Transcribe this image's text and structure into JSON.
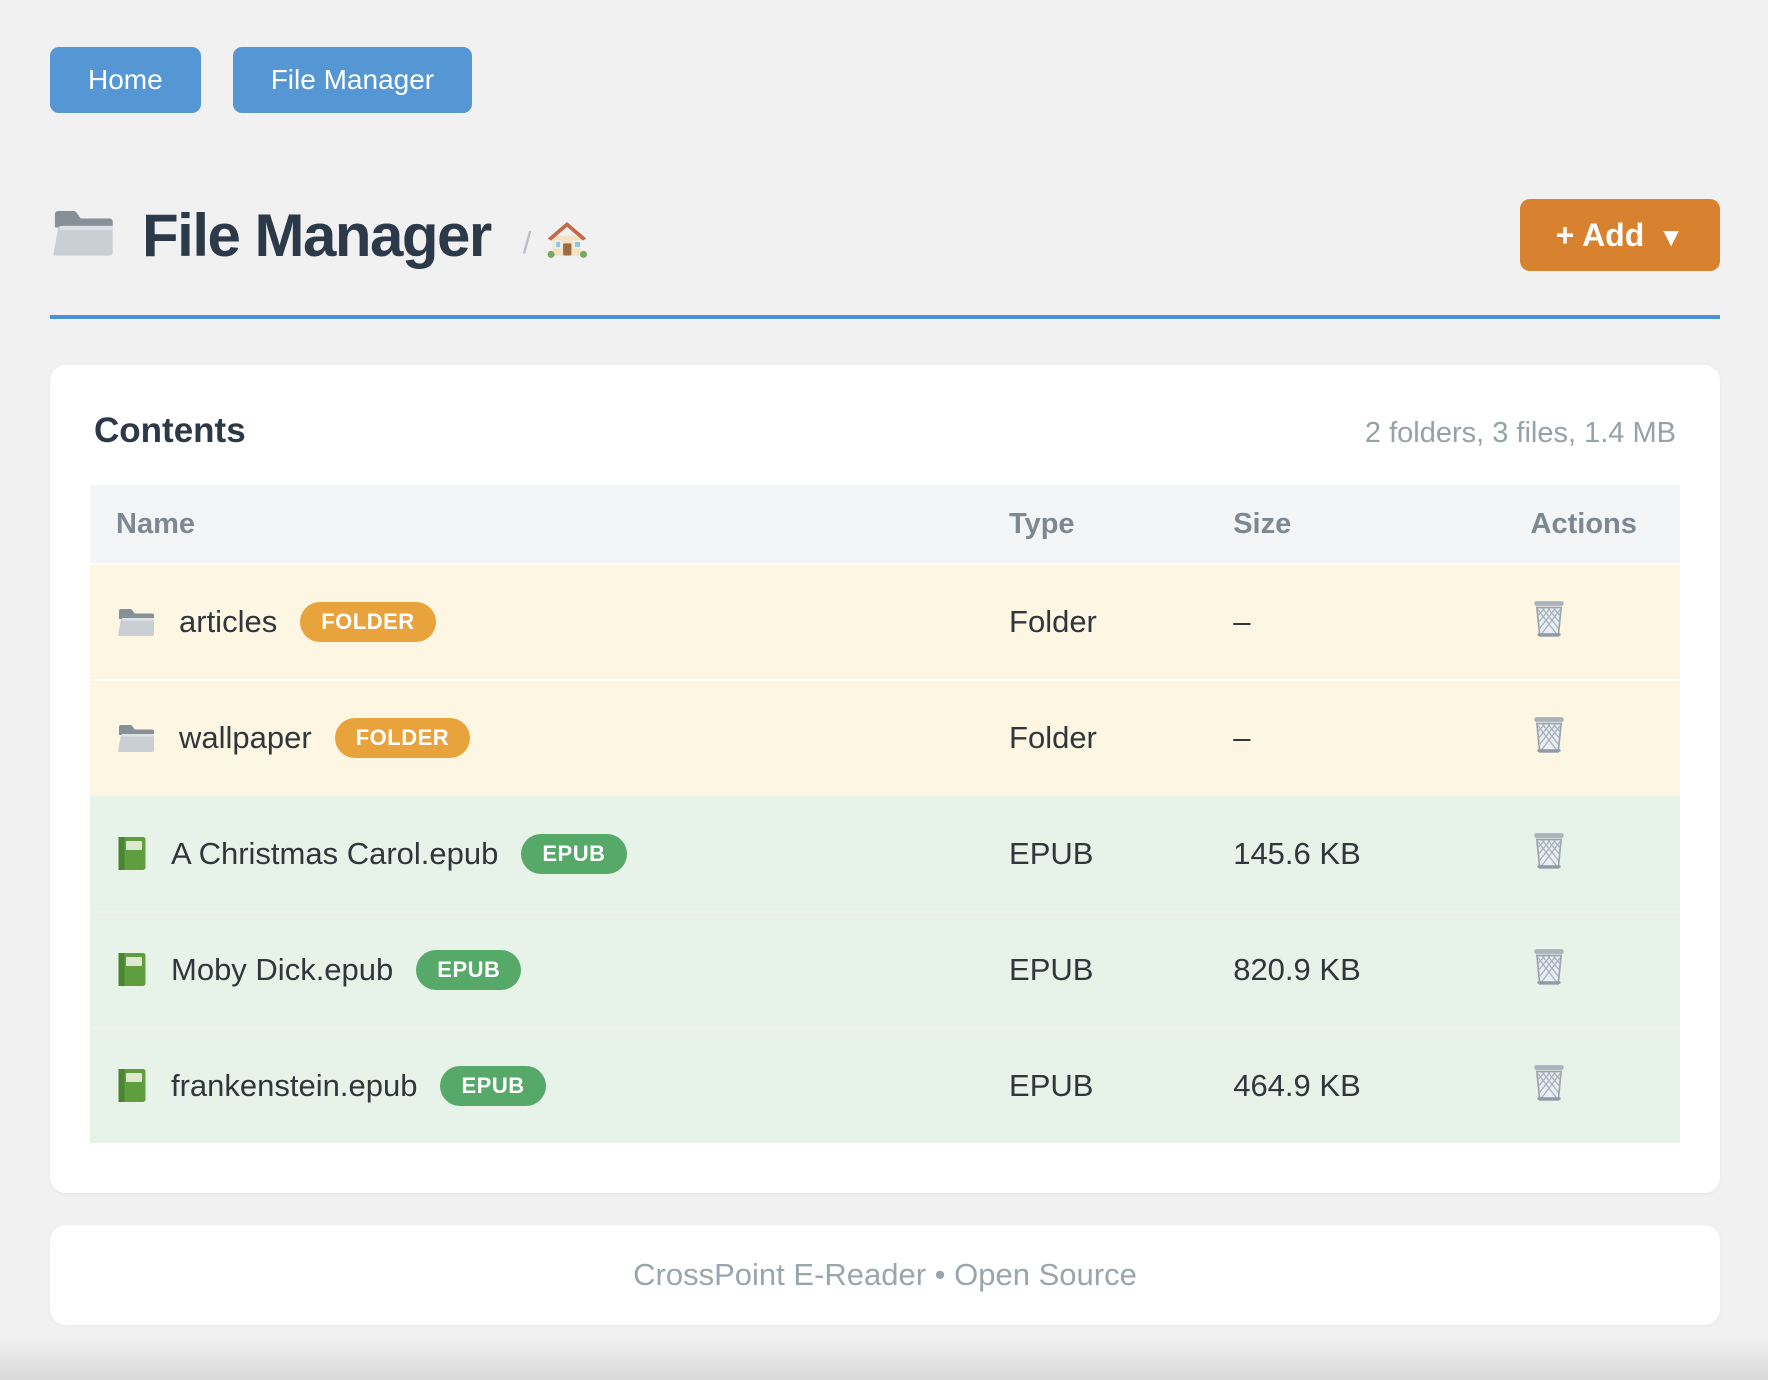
{
  "nav": {
    "home_label": "Home",
    "file_manager_label": "File Manager"
  },
  "header": {
    "title": "File Manager",
    "breadcrumb_separator": "/",
    "add_button_label": "+ Add",
    "add_button_caret": "▼"
  },
  "panel": {
    "title": "Contents",
    "summary": "2 folders, 3 files, 1.4 MB",
    "columns": {
      "name": "Name",
      "type": "Type",
      "size": "Size",
      "actions": "Actions"
    },
    "rows": [
      {
        "name": "articles",
        "badge": "FOLDER",
        "type": "Folder",
        "size": "–",
        "kind": "folder"
      },
      {
        "name": "wallpaper",
        "badge": "FOLDER",
        "type": "Folder",
        "size": "–",
        "kind": "folder"
      },
      {
        "name": "A Christmas Carol.epub",
        "badge": "EPUB",
        "type": "EPUB",
        "size": "145.6 KB",
        "kind": "epub"
      },
      {
        "name": "Moby Dick.epub",
        "badge": "EPUB",
        "type": "EPUB",
        "size": "820.9 KB",
        "kind": "epub"
      },
      {
        "name": "frankenstein.epub",
        "badge": "EPUB",
        "type": "EPUB",
        "size": "464.9 KB",
        "kind": "epub"
      }
    ]
  },
  "footer": {
    "text": "CrossPoint E-Reader • Open Source"
  },
  "colors": {
    "primary_blue": "#5596d4",
    "accent_orange": "#d88230",
    "rule_blue": "#4a91d6",
    "folder_badge": "#e8a33c",
    "epub_badge": "#56a968",
    "folder_row_bg": "#fdf6e3",
    "epub_row_bg": "#e7f3e8",
    "heading_color": "#2c3948",
    "muted_text": "#97a1a8"
  }
}
